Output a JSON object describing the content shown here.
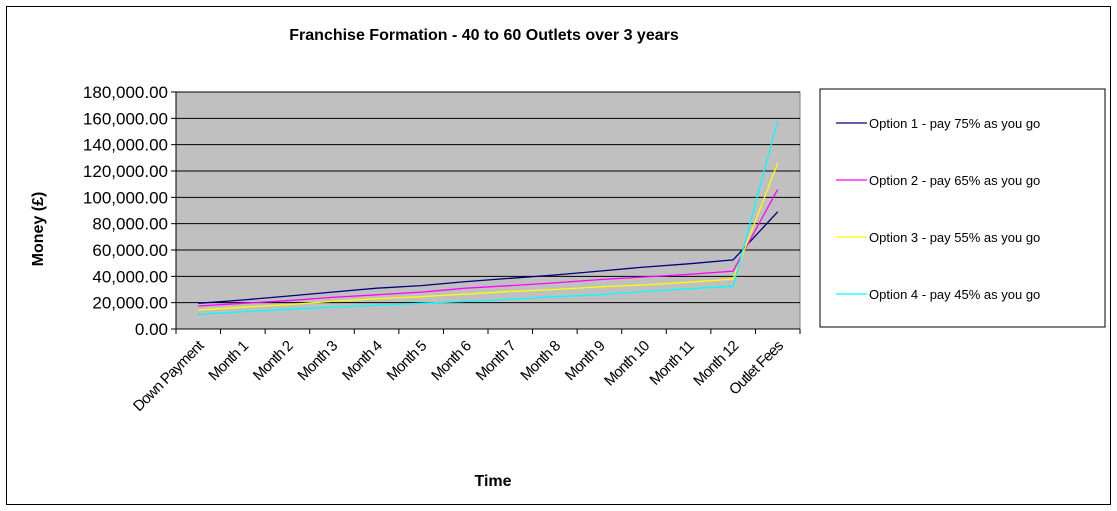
{
  "chart_data": {
    "type": "line",
    "title": "Franchise Formation - 40 to 60 Outlets over 3 years",
    "xlabel": "Time",
    "ylabel": "Money (£)",
    "ylim": [
      0,
      180000
    ],
    "y_ticks": [
      "0.00",
      "20,000.00",
      "40,000.00",
      "60,000.00",
      "80,000.00",
      "100,000.00",
      "120,000.00",
      "140,000.00",
      "160,000.00",
      "180,000.00"
    ],
    "grid": true,
    "legend_position": "right",
    "plot_background": "#c0c0c0",
    "categories": [
      "Down Payment",
      "Month 1",
      "Month 2",
      "Month 3",
      "Month 4",
      "Month 5",
      "Month 6",
      "Month 7",
      "Month 8",
      "Month 9",
      "Month 10",
      "Month 11",
      "Month 12",
      "Outlet Fees"
    ],
    "series": [
      {
        "name": "Option 1 - pay 75% as you go",
        "color": "#000080",
        "values": [
          19500,
          22000,
          25000,
          28000,
          31000,
          33000,
          36000,
          38500,
          41000,
          44000,
          47000,
          49500,
          52500,
          89000
        ]
      },
      {
        "name": "Option 2 - pay 65% as you go",
        "color": "#ff00ff",
        "values": [
          17500,
          19500,
          21500,
          24000,
          26000,
          28000,
          31000,
          33000,
          35000,
          37500,
          39500,
          41500,
          44000,
          106000
        ]
      },
      {
        "name": "Option 3 - pay 55% as you go",
        "color": "#ffff00",
        "values": [
          14500,
          16500,
          18500,
          21000,
          23000,
          24500,
          26500,
          28500,
          30000,
          32000,
          33500,
          35500,
          38000,
          126000
        ]
      },
      {
        "name": "Option 4 - pay 45% as you go",
        "color": "#00ffff",
        "values": [
          11000,
          13000,
          15000,
          16500,
          18000,
          19500,
          21000,
          22500,
          24500,
          26000,
          28500,
          30500,
          32500,
          158000
        ]
      }
    ]
  }
}
